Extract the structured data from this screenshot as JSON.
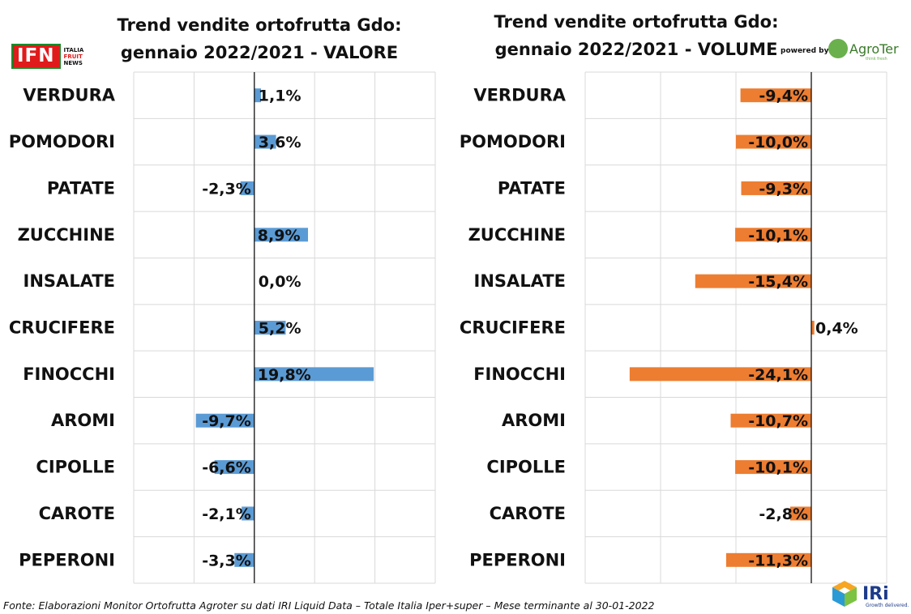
{
  "titles": {
    "left": "Trend vendite ortofrutta Gdo: gennaio 2022/2021 - VALORE",
    "right": "Trend vendite ortofrutta Gdo: gennaio 2022/2021 - VOLUME"
  },
  "logos": {
    "ifn_main": "IFN",
    "ifn_line1": "ITALIA",
    "ifn_line2": "FRUIT",
    "ifn_line3": "NEWS",
    "powered_by": "powered by",
    "agroter": "AgroTer",
    "agroter_tagline": "think fresh",
    "iri": "IRi",
    "iri_tagline": "Growth delivered."
  },
  "footnote": "Fonte: Elaborazioni Monitor Ortofrutta Agroter su dati IRI Liquid Data – Totale Italia Iper+super – Mese terminante al 30-01-2022",
  "colors": {
    "valore": "#5b9bd5",
    "volume": "#ed7d31",
    "grid": "#d9d9d9",
    "axis": "#000000"
  },
  "chart_data": [
    {
      "type": "bar",
      "orientation": "horizontal",
      "title": "Trend vendite ortofrutta Gdo: gennaio 2022/2021 - VALORE",
      "categories": [
        "VERDURA",
        "POMODORI",
        "PATATE",
        "ZUCCHINE",
        "INSALATE",
        "CRUCIFERE",
        "FINOCCHI",
        "AROMI",
        "CIPOLLE",
        "CAROTE",
        "PEPERONI"
      ],
      "values": [
        1.1,
        3.6,
        -2.3,
        8.9,
        0.0,
        5.2,
        19.8,
        -9.7,
        -6.6,
        -2.1,
        -3.3
      ],
      "labels": [
        "1,1%",
        "3,6%",
        "-2,3%",
        "8,9%",
        "0,0%",
        "5,2%",
        "19,8%",
        "-9,7%",
        "-6,6%",
        "-2,1%",
        "-3,3%"
      ],
      "xlim": [
        -20,
        30
      ],
      "grid": true,
      "color": "#5b9bd5"
    },
    {
      "type": "bar",
      "orientation": "horizontal",
      "title": "Trend vendite ortofrutta Gdo: gennaio 2022/2021 - VOLUME",
      "categories": [
        "VERDURA",
        "POMODORI",
        "PATATE",
        "ZUCCHINE",
        "INSALATE",
        "CRUCIFERE",
        "FINOCCHI",
        "AROMI",
        "CIPOLLE",
        "CAROTE",
        "PEPERONI"
      ],
      "values": [
        -9.4,
        -10.0,
        -9.3,
        -10.1,
        -15.4,
        0.4,
        -24.1,
        -10.7,
        -10.1,
        -2.8,
        -11.3
      ],
      "labels": [
        "-9,4%",
        "-10,0%",
        "-9,3%",
        "-10,1%",
        "-15,4%",
        "0,4%",
        "-24,1%",
        "-10,7%",
        "-10,1%",
        "-2,8%",
        "-11,3%"
      ],
      "xlim": [
        -30,
        10
      ],
      "grid": true,
      "color": "#ed7d31"
    }
  ]
}
